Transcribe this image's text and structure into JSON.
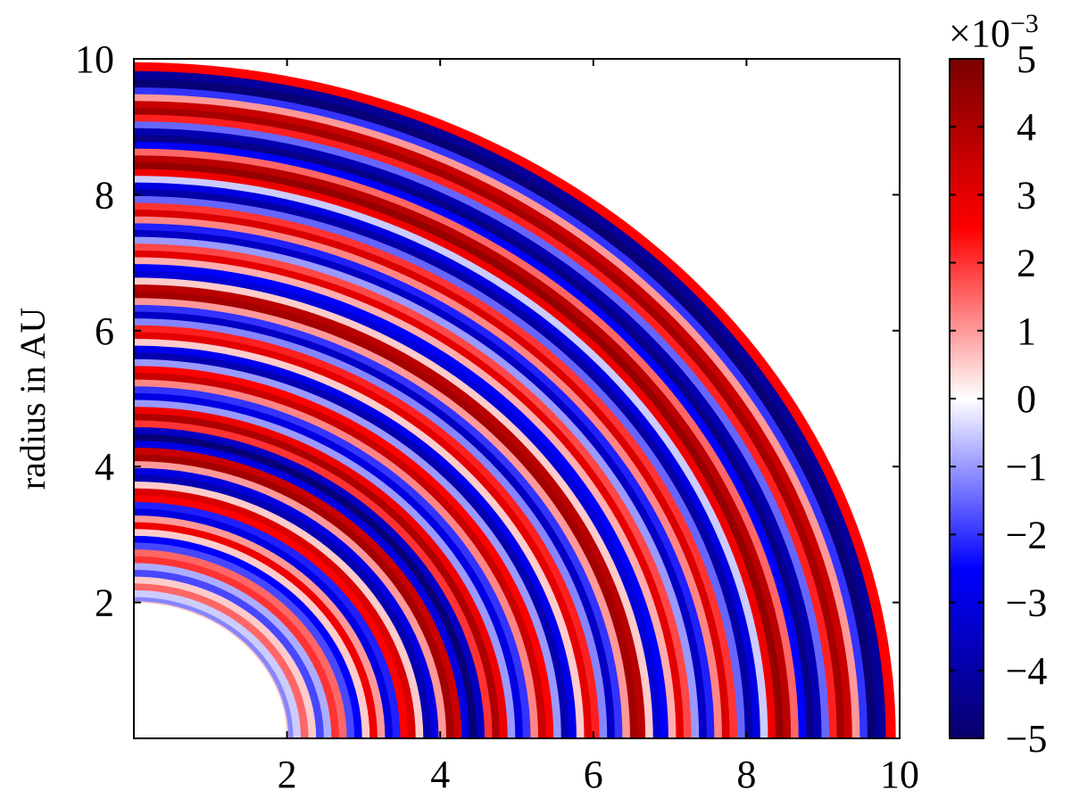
{
  "chart_data": {
    "type": "heatmap",
    "title": "",
    "xlabel": "",
    "ylabel": "radius in AU",
    "xlim": [
      0,
      10
    ],
    "ylim": [
      0,
      10
    ],
    "x_ticks": [
      "2",
      "4",
      "6",
      "8",
      "10"
    ],
    "y_ticks": [
      "2",
      "4",
      "6",
      "8",
      "10"
    ],
    "inner_radius": 2,
    "outer_radius": 10,
    "geometry": "quarter-annulus",
    "colorbar": {
      "range": [
        -5,
        5
      ],
      "multiplier": "×10−3",
      "multiplier_base": "×10",
      "multiplier_exp": "−3",
      "ticks": [
        "5",
        "4",
        "3",
        "2",
        "1",
        "0",
        "−1",
        "−2",
        "−3",
        "−4",
        "−5"
      ],
      "colormap": [
        "#08006b",
        "#0000ff",
        "#ffffff",
        "#ff0000",
        "#7a0000"
      ]
    },
    "rings": [
      {
        "r": 9.95,
        "v": 2.5
      },
      {
        "r": 9.82,
        "v": -4.2
      },
      {
        "r": 9.7,
        "v": -4.8
      },
      {
        "r": 9.58,
        "v": -2.0
      },
      {
        "r": 9.48,
        "v": 1.0
      },
      {
        "r": 9.38,
        "v": 3.5
      },
      {
        "r": 9.28,
        "v": 4.2
      },
      {
        "r": 9.18,
        "v": 2.2
      },
      {
        "r": 9.08,
        "v": -1.5
      },
      {
        "r": 8.98,
        "v": -3.8
      },
      {
        "r": 8.88,
        "v": -4.5
      },
      {
        "r": 8.78,
        "v": -2.5
      },
      {
        "r": 8.68,
        "v": 1.5
      },
      {
        "r": 8.58,
        "v": 3.8
      },
      {
        "r": 8.48,
        "v": 4.5
      },
      {
        "r": 8.38,
        "v": 2.8
      },
      {
        "r": 8.28,
        "v": -0.5
      },
      {
        "r": 8.18,
        "v": -3.0
      },
      {
        "r": 8.08,
        "v": -4.0
      },
      {
        "r": 7.98,
        "v": -1.5
      },
      {
        "r": 7.88,
        "v": 2.0
      },
      {
        "r": 7.78,
        "v": 3.2
      },
      {
        "r": 7.68,
        "v": 1.2
      },
      {
        "r": 7.58,
        "v": -2.2
      },
      {
        "r": 7.48,
        "v": -3.5
      },
      {
        "r": 7.38,
        "v": -1.0
      },
      {
        "r": 7.28,
        "v": 1.8
      },
      {
        "r": 7.18,
        "v": 3.0
      },
      {
        "r": 7.08,
        "v": 0.8
      },
      {
        "r": 6.98,
        "v": -2.5
      },
      {
        "r": 6.88,
        "v": -3.2
      },
      {
        "r": 6.78,
        "v": 0.5
      },
      {
        "r": 6.68,
        "v": 3.8
      },
      {
        "r": 6.58,
        "v": 4.2
      },
      {
        "r": 6.48,
        "v": 1.0
      },
      {
        "r": 6.38,
        "v": -2.0
      },
      {
        "r": 6.28,
        "v": -3.5
      },
      {
        "r": 6.18,
        "v": -1.2
      },
      {
        "r": 6.08,
        "v": 2.2
      },
      {
        "r": 5.98,
        "v": 3.0
      },
      {
        "r": 5.88,
        "v": 0.5
      },
      {
        "r": 5.78,
        "v": -2.8
      },
      {
        "r": 5.68,
        "v": -3.8
      },
      {
        "r": 5.58,
        "v": -1.0
      },
      {
        "r": 5.48,
        "v": 2.5
      },
      {
        "r": 5.38,
        "v": 3.5
      },
      {
        "r": 5.28,
        "v": 1.2
      },
      {
        "r": 5.18,
        "v": -2.0
      },
      {
        "r": 5.08,
        "v": -3.0
      },
      {
        "r": 4.98,
        "v": -1.0
      },
      {
        "r": 4.88,
        "v": 2.8
      },
      {
        "r": 4.78,
        "v": 4.0
      },
      {
        "r": 4.68,
        "v": 2.0
      },
      {
        "r": 4.58,
        "v": -3.5
      },
      {
        "r": 4.48,
        "v": -4.8
      },
      {
        "r": 4.38,
        "v": -3.0
      },
      {
        "r": 4.28,
        "v": 3.5
      },
      {
        "r": 4.18,
        "v": 4.2
      },
      {
        "r": 4.08,
        "v": 1.0
      },
      {
        "r": 3.98,
        "v": -3.0
      },
      {
        "r": 3.88,
        "v": -3.8
      },
      {
        "r": 3.78,
        "v": 0.5
      },
      {
        "r": 3.68,
        "v": 3.2
      },
      {
        "r": 3.58,
        "v": 2.5
      },
      {
        "r": 3.48,
        "v": -2.2
      },
      {
        "r": 3.38,
        "v": -3.0
      },
      {
        "r": 3.28,
        "v": 1.0
      },
      {
        "r": 3.18,
        "v": 2.8
      },
      {
        "r": 3.08,
        "v": 0.5
      },
      {
        "r": 2.98,
        "v": -2.5
      },
      {
        "r": 2.88,
        "v": -1.8
      },
      {
        "r": 2.78,
        "v": 1.5
      },
      {
        "r": 2.68,
        "v": 2.0
      },
      {
        "r": 2.58,
        "v": -0.8
      },
      {
        "r": 2.48,
        "v": -1.8
      },
      {
        "r": 2.38,
        "v": 0.5
      },
      {
        "r": 2.28,
        "v": 1.5
      },
      {
        "r": 2.18,
        "v": -0.5
      },
      {
        "r": 2.08,
        "v": -1.2
      },
      {
        "r": 2.02,
        "v": 0.6
      }
    ]
  }
}
